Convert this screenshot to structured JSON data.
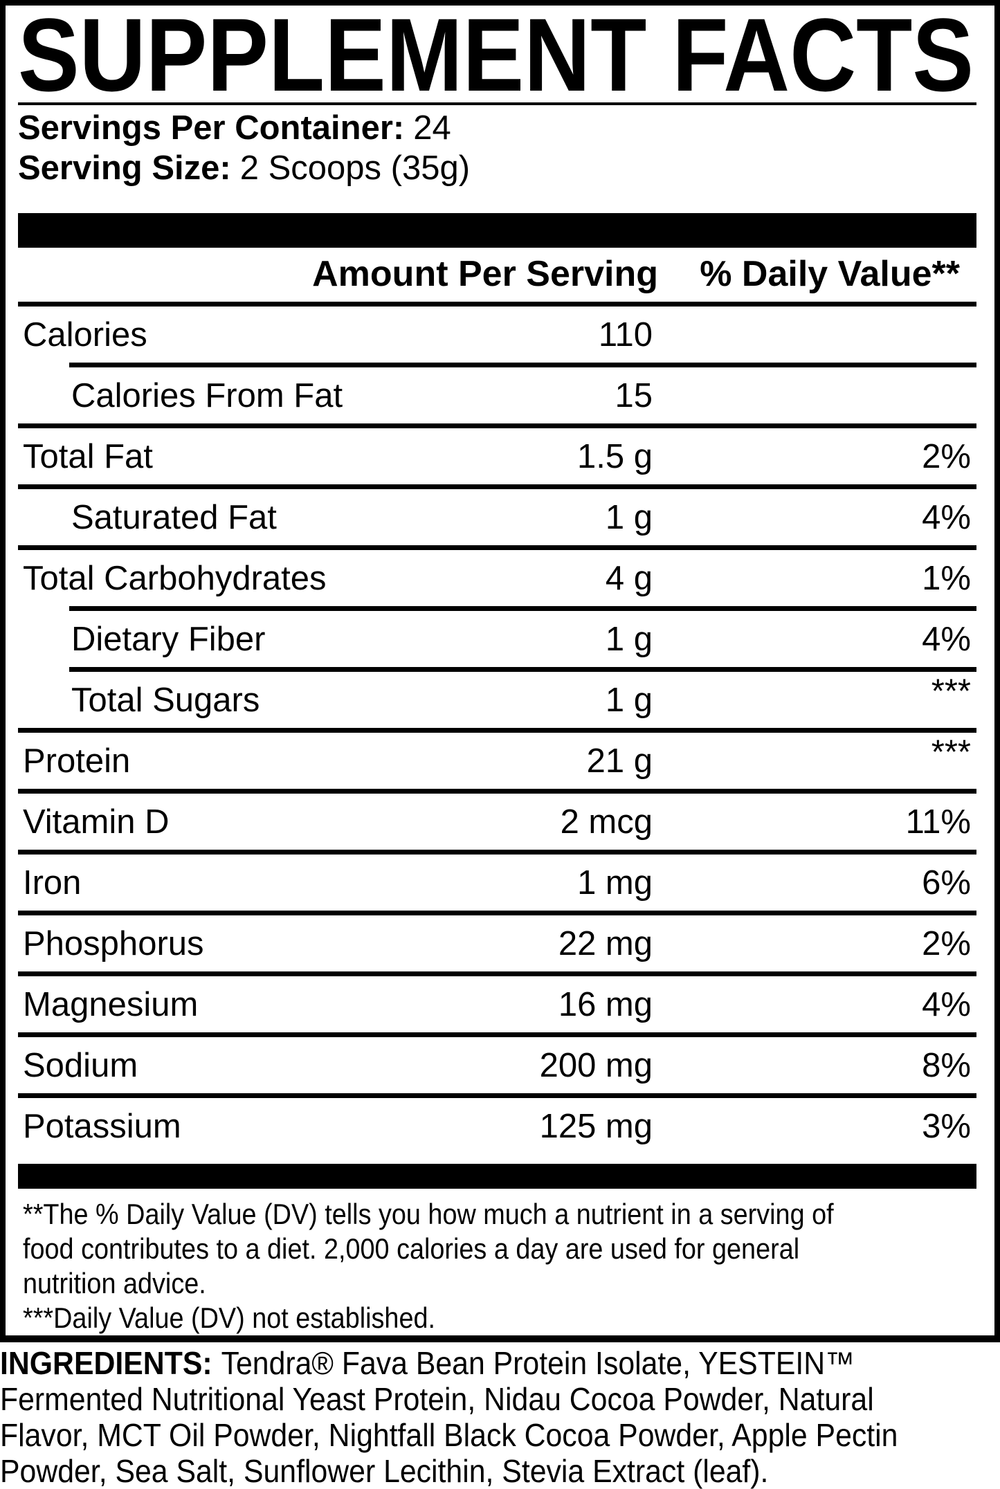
{
  "title": "SUPPLEMENT FACTS",
  "serving_info": {
    "servings_label": "Servings Per Container:",
    "servings_value": "24",
    "size_label": "Serving Size:",
    "size_value": "2 Scoops (35g)"
  },
  "table": {
    "headers": {
      "amount": "Amount Per Serving",
      "daily_value": "% Daily Value**"
    },
    "rows": [
      {
        "name": "Calories",
        "amount": "110",
        "dv": ""
      },
      {
        "name": "Calories From Fat",
        "amount": "15",
        "dv": ""
      },
      {
        "name": "Total Fat",
        "amount": "1.5 g",
        "dv": "2%"
      },
      {
        "name": "Saturated Fat",
        "amount": "1 g",
        "dv": "4%"
      },
      {
        "name": "Total Carbohydrates",
        "amount": "4 g",
        "dv": "1%"
      },
      {
        "name": "Dietary Fiber",
        "amount": "1 g",
        "dv": "4%"
      },
      {
        "name": "Total Sugars",
        "amount": "1 g",
        "dv": "***"
      },
      {
        "name": "Protein",
        "amount": "21 g",
        "dv": "***"
      },
      {
        "name": "Vitamin D",
        "amount": "2 mcg",
        "dv": "11%"
      },
      {
        "name": "Iron",
        "amount": "1 mg",
        "dv": "6%"
      },
      {
        "name": "Phosphorus",
        "amount": "22 mg",
        "dv": "2%"
      },
      {
        "name": "Magnesium",
        "amount": "16 mg",
        "dv": "4%"
      },
      {
        "name": "Sodium",
        "amount": "200 mg",
        "dv": "8%"
      },
      {
        "name": "Potassium",
        "amount": "125 mg",
        "dv": "3%"
      }
    ]
  },
  "footnote": {
    "lines": [
      "**The % Daily Value (DV) tells you how much a nutrient in a serving of",
      "food contributes to a diet. 2,000 calories a day are used for general",
      "nutrition advice.",
      "***Daily Value (DV) not established."
    ]
  },
  "ingredients": {
    "label": "INGREDIENTS:",
    "lines": [
      "Tendra® Fava Bean Protein Isolate, YESTEIN™",
      "Fermented Nutritional Yeast Protein, Nidau Cocoa Powder, Natural",
      "Flavor, MCT Oil Powder, Nightfall Black Cocoa Powder, Apple Pectin",
      "Powder, Sea Salt, Sunflower Lecithin, Stevia Extract (leaf)."
    ]
  },
  "colors": {
    "text": "#000000",
    "background": "#ffffff"
  }
}
